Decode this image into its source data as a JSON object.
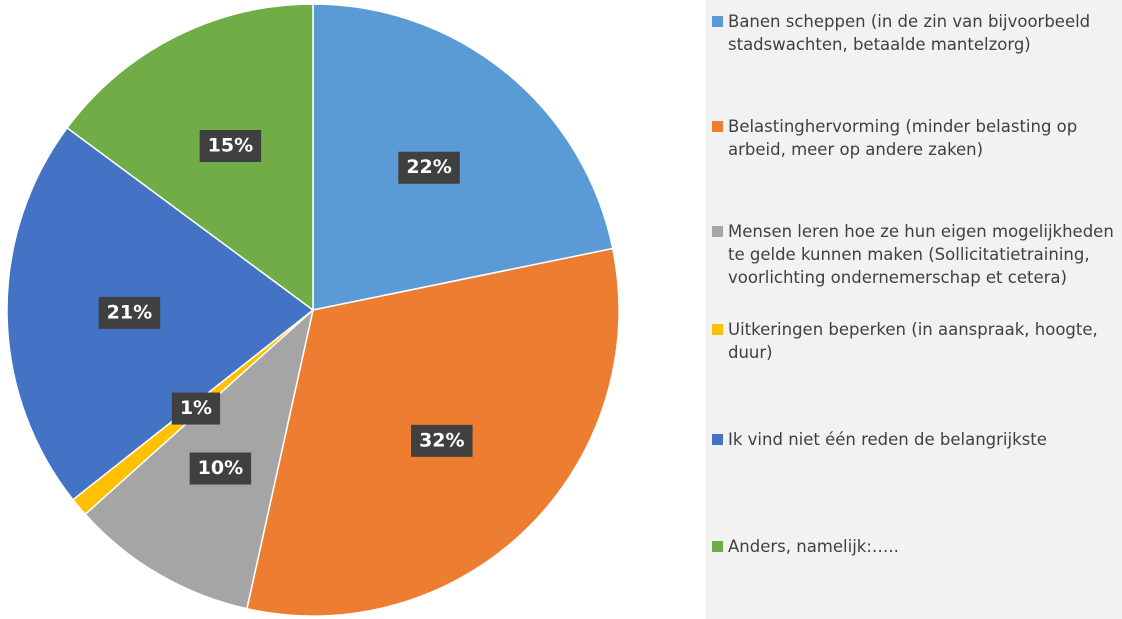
{
  "chart_data": {
    "type": "pie",
    "categories": [
      "Banen scheppen (in de zin van bijvoorbeeld stadswachten, betaalde mantelzorg)",
      "Belastinghervorming (minder belasting op arbeid, meer op andere zaken)",
      "Mensen leren hoe ze hun eigen mogelijkheden te gelde kunnen maken (Sollicitatietraining, voorlichting ondernemerschap et cetera)",
      "Uitkeringen beperken (in aanspraak, hoogte, duur)",
      "Ik vind niet één reden de belangrijkste",
      "Anders, namelijk:….."
    ],
    "values": [
      22,
      32,
      10,
      1,
      21,
      15
    ],
    "value_labels": [
      "22%",
      "32%",
      "10%",
      "1%",
      "21%",
      "15%"
    ],
    "colors": [
      "#5b9bd5",
      "#ed7d31",
      "#a5a5a5",
      "#ffc000",
      "#4472c4",
      "#70ad47"
    ],
    "legend": "right"
  }
}
